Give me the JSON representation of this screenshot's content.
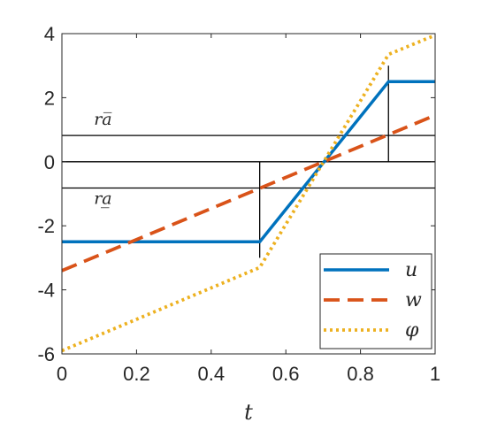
{
  "chart_data": {
    "type": "line",
    "xlabel": "t",
    "ylabel": "",
    "xlim": [
      0,
      1
    ],
    "ylim": [
      -6,
      4
    ],
    "xticks": [
      "0",
      "0.2",
      "0.4",
      "0.6",
      "0.8",
      "1"
    ],
    "yticks": [
      "4",
      "2",
      "0",
      "-2",
      "-4",
      "-6"
    ],
    "grid": false,
    "legend_position": "bottom-right",
    "series": [
      {
        "name": "u",
        "color": "#0072BD",
        "style": "solid",
        "x": [
          0,
          0.53,
          0.875,
          1
        ],
        "y": [
          -2.5,
          -2.5,
          2.5,
          2.5
        ]
      },
      {
        "name": "w",
        "color": "#D95319",
        "style": "dashed",
        "x": [
          0,
          1
        ],
        "y": [
          -3.4,
          1.45
        ]
      },
      {
        "name": "φ",
        "color": "#EDB120",
        "style": "dotted",
        "x": [
          0,
          0.53,
          0.875,
          1
        ],
        "y": [
          -5.9,
          -3.3,
          3.35,
          3.95
        ]
      }
    ],
    "reference_lines": {
      "horizontal": [
        0.82,
        0,
        -0.82
      ],
      "vertical": [
        {
          "x": 0.53,
          "y": [
            -3,
            0
          ]
        },
        {
          "x": 0.875,
          "y": [
            0,
            3
          ]
        }
      ]
    },
    "annotations": [
      {
        "label": "ra̅",
        "x": 0.11,
        "y": 1.15
      },
      {
        "label": "ra̲",
        "x": 0.11,
        "y": -1.32
      }
    ]
  }
}
